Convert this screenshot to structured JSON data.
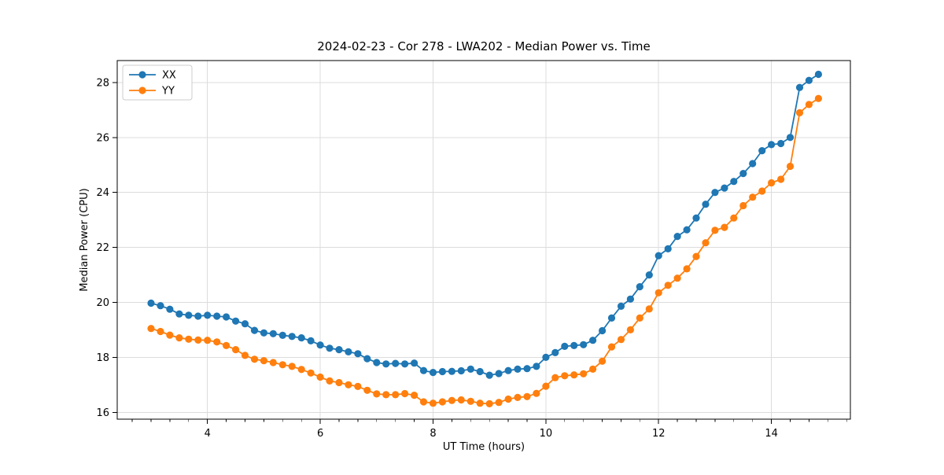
{
  "chart_data": {
    "type": "line",
    "title": "2024-02-23 - Cor 278 - LWA202 - Median Power vs. Time",
    "xlabel": "UT Time (hours)",
    "ylabel": "Median Power (CPU)",
    "xlim": [
      2.4,
      15.4
    ],
    "ylim": [
      15.75,
      28.8
    ],
    "x_ticks": [
      4,
      6,
      8,
      10,
      12,
      14
    ],
    "y_ticks": [
      16,
      18,
      20,
      22,
      24,
      26,
      28
    ],
    "x_minor_step": 0.3333333,
    "grid": true,
    "grid_color": "#dcdcdc",
    "legend_position": "upper-left",
    "x_start": 3.0,
    "x_step": 0.1666667,
    "series": [
      {
        "name": "XX",
        "color": "#1f77b4",
        "values": [
          19.97,
          19.88,
          19.75,
          19.58,
          19.53,
          19.5,
          19.53,
          19.5,
          19.47,
          19.32,
          19.22,
          18.98,
          18.89,
          18.86,
          18.8,
          18.76,
          18.71,
          18.6,
          18.45,
          18.33,
          18.28,
          18.2,
          18.13,
          17.95,
          17.81,
          17.76,
          17.78,
          17.76,
          17.79,
          17.52,
          17.45,
          17.48,
          17.49,
          17.51,
          17.57,
          17.48,
          17.35,
          17.41,
          17.52,
          17.57,
          17.59,
          17.67,
          18.0,
          18.17,
          18.4,
          18.43,
          18.46,
          18.62,
          18.97,
          19.43,
          19.86,
          20.12,
          20.57,
          21.0,
          21.7,
          21.95,
          22.4,
          22.64,
          23.07,
          23.57,
          24.0,
          24.16,
          24.4,
          24.69,
          25.05,
          25.52,
          25.74,
          25.78,
          26.0,
          27.82,
          28.08,
          28.3
        ]
      },
      {
        "name": "YY",
        "color": "#ff7f0e",
        "values": [
          19.05,
          18.94,
          18.81,
          18.71,
          18.66,
          18.63,
          18.62,
          18.56,
          18.43,
          18.28,
          18.07,
          17.93,
          17.88,
          17.81,
          17.73,
          17.67,
          17.56,
          17.43,
          17.28,
          17.14,
          17.08,
          17.0,
          16.94,
          16.8,
          16.67,
          16.64,
          16.64,
          16.68,
          16.62,
          16.38,
          16.33,
          16.38,
          16.43,
          16.45,
          16.4,
          16.33,
          16.31,
          16.36,
          16.48,
          16.54,
          16.57,
          16.69,
          16.95,
          17.26,
          17.33,
          17.36,
          17.4,
          17.57,
          17.86,
          18.38,
          18.65,
          19.0,
          19.43,
          19.76,
          20.35,
          20.62,
          20.88,
          21.22,
          21.67,
          22.17,
          22.62,
          22.73,
          23.07,
          23.52,
          23.83,
          24.05,
          24.35,
          24.48,
          24.95,
          26.9,
          27.2,
          27.42
        ]
      }
    ]
  }
}
